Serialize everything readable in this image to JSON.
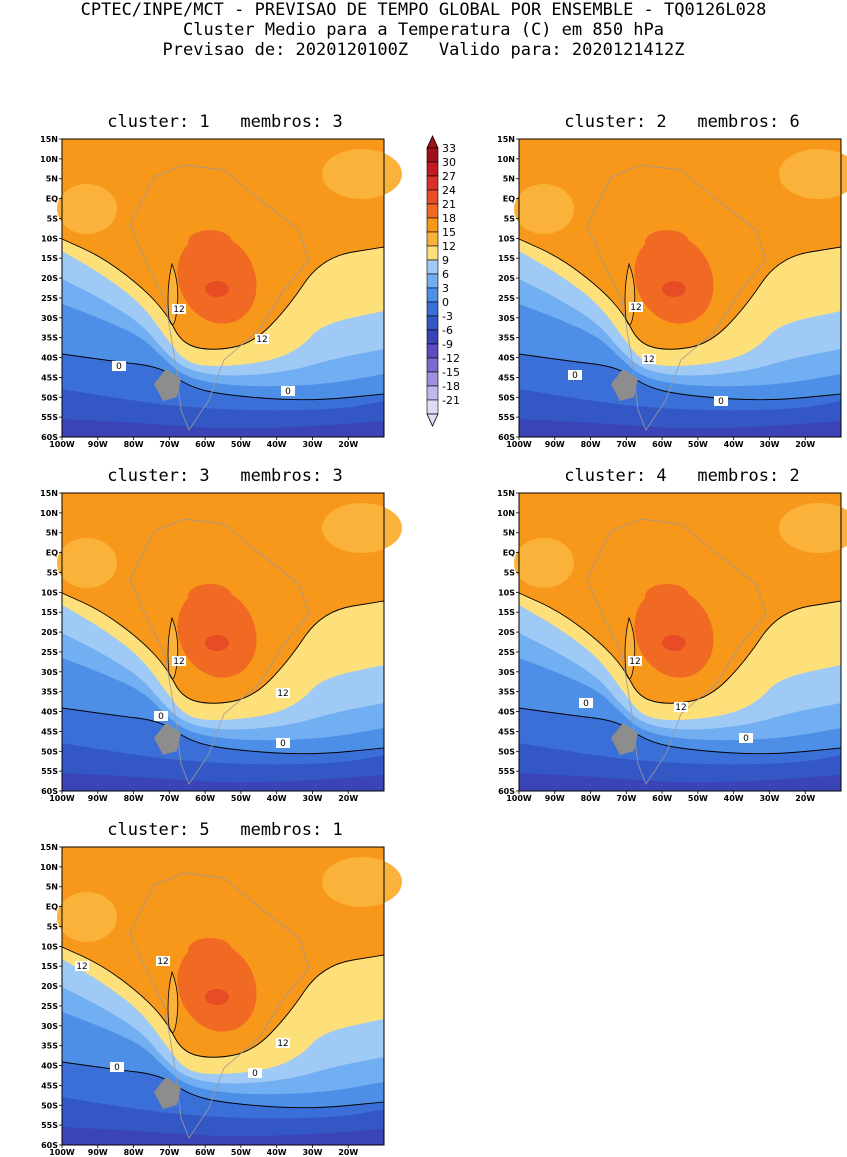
{
  "header": {
    "line1": "CPTEC/INPE/MCT - PREVISAO DE TEMPO GLOBAL POR ENSEMBLE - TQ0126L028",
    "line2": "Cluster Medio para a Temperatura (C) em 850 hPa",
    "line3": "Previsao de: 2020120100Z   Valido para: 2020121412Z"
  },
  "lat_ticks": [
    "15N",
    "10N",
    "5N",
    "EQ",
    "5S",
    "10S",
    "15S",
    "20S",
    "25S",
    "30S",
    "35S",
    "40S",
    "45S",
    "50S",
    "55S",
    "60S"
  ],
  "lon_ticks": [
    "100W",
    "90W",
    "80W",
    "70W",
    "60W",
    "50W",
    "40W",
    "30W",
    "20W"
  ],
  "panels": [
    {
      "title": "cluster: 1   membros: 3",
      "contour_labels": [
        "12",
        "12",
        "0",
        "0"
      ]
    },
    {
      "title": "cluster: 2   membros: 6",
      "contour_labels": [
        "12",
        "12",
        "0",
        "0"
      ]
    },
    {
      "title": "cluster: 3   membros: 3",
      "contour_labels": [
        "12",
        "12",
        "0",
        "0"
      ]
    },
    {
      "title": "cluster: 4   membros: 2",
      "contour_labels": [
        "12",
        "0",
        "12",
        "0"
      ]
    },
    {
      "title": "cluster: 5   membros: 1",
      "contour_labels": [
        "12",
        "12",
        "12",
        "0",
        "0"
      ]
    }
  ],
  "colorbar": {
    "levels": [
      "33",
      "30",
      "27",
      "24",
      "21",
      "18",
      "15",
      "12",
      "9",
      "6",
      "3",
      "0",
      "-3",
      "-6",
      "-9",
      "-12",
      "-15",
      "-18",
      "-21"
    ],
    "colors": {
      "c33": "#a2101a",
      "c30": "#c41a22",
      "c27": "#d9302a",
      "c24": "#e84c24",
      "c21": "#f06a24",
      "c18": "#f7981b",
      "c15": "#fbb23a",
      "c12": "#fde07a",
      "c9": "#9fcaf6",
      "c6": "#72aef2",
      "c3": "#4d8fe6",
      "c0": "#3a6fd8",
      "cm3": "#3457c6",
      "cm6": "#3a44b6",
      "cm9": "#5a4cc2",
      "cm12": "#7e69d0",
      "cm15": "#a28ede",
      "cm18": "#c4b6ec",
      "cm21": "#e2dbf6"
    }
  }
}
